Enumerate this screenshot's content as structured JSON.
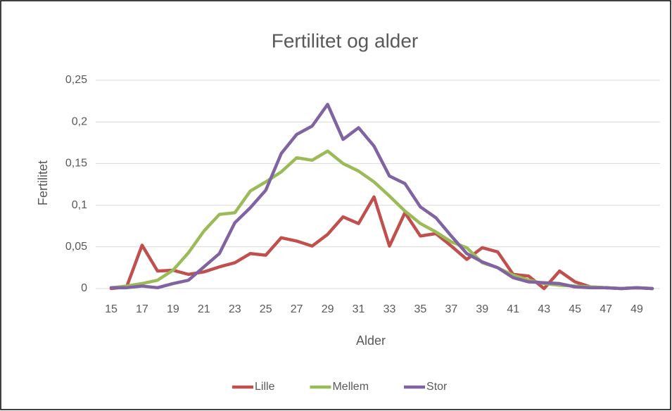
{
  "chart_data": {
    "type": "line",
    "title": "Fertilitet og alder",
    "x_label": "Alder",
    "y_label": "Fertilitet",
    "x": [
      15,
      16,
      17,
      18,
      19,
      20,
      21,
      22,
      23,
      24,
      25,
      26,
      27,
      28,
      29,
      30,
      31,
      32,
      33,
      34,
      35,
      36,
      37,
      38,
      39,
      40,
      41,
      42,
      43,
      44,
      45,
      46,
      47,
      48,
      49,
      50
    ],
    "series": [
      {
        "name": "Lille",
        "color": "#c0504d",
        "values": [
          0,
          0.002,
          0.052,
          0.021,
          0.022,
          0.017,
          0.02,
          0.026,
          0.031,
          0.042,
          0.04,
          0.061,
          0.057,
          0.051,
          0.065,
          0.086,
          0.078,
          0.11,
          0.051,
          0.091,
          0.063,
          0.066,
          0.051,
          0.035,
          0.049,
          0.044,
          0.017,
          0.015,
          0,
          0.021,
          0.008,
          0.002,
          0.001,
          0,
          0.001,
          0
        ]
      },
      {
        "name": "Mellem",
        "color": "#9bbb59",
        "values": [
          0.001,
          0.003,
          0.006,
          0.01,
          0.022,
          0.043,
          0.069,
          0.089,
          0.091,
          0.117,
          0.128,
          0.14,
          0.157,
          0.154,
          0.165,
          0.15,
          0.141,
          0.128,
          0.111,
          0.093,
          0.078,
          0.068,
          0.056,
          0.049,
          0.031,
          0.025,
          0.016,
          0.01,
          0.006,
          0.004,
          0.003,
          0.002,
          0.001,
          0,
          0.001,
          0
        ]
      },
      {
        "name": "Stor",
        "color": "#8064a2",
        "values": [
          0.001,
          0.001,
          0.003,
          0.001,
          0.006,
          0.01,
          0.026,
          0.042,
          0.079,
          0.097,
          0.118,
          0.162,
          0.185,
          0.195,
          0.221,
          0.179,
          0.193,
          0.171,
          0.135,
          0.126,
          0.098,
          0.085,
          0.063,
          0.042,
          0.032,
          0.025,
          0.013,
          0.008,
          0.007,
          0.006,
          0.002,
          0.001,
          0.001,
          0,
          0.001,
          0
        ]
      }
    ],
    "xlim": [
      14,
      50.5
    ],
    "xticks": [
      15,
      17,
      19,
      21,
      23,
      25,
      27,
      29,
      31,
      33,
      35,
      37,
      39,
      41,
      43,
      45,
      47,
      49
    ],
    "ylim": [
      0,
      0.25
    ],
    "yticks": [
      0,
      {
        "value": 0.05,
        "label": "0,05"
      },
      {
        "value": 0.1,
        "label": "0,1"
      },
      {
        "value": 0.15,
        "label": "0,15"
      },
      {
        "value": 0.2,
        "label": "0,2"
      },
      {
        "value": 0.25,
        "label": "0,25"
      }
    ],
    "grid": true,
    "legend": "bottom"
  }
}
